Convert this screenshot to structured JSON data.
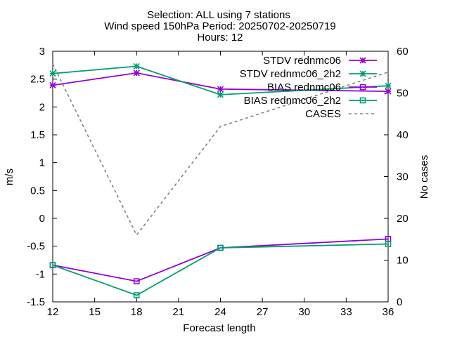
{
  "chart_data": {
    "type": "line",
    "title_lines": [
      "Selection: ALL using     7 stations",
      "Wind speed 150hPa   Period: 20250702-20250719",
      "Hours: 12"
    ],
    "xlabel": "Forecast length",
    "ylabel": "m/s",
    "y2label": "No cases",
    "xlim": [
      12,
      36
    ],
    "ylim": [
      -1.5,
      3
    ],
    "y2lim": [
      0,
      60
    ],
    "x_ticks": [
      12,
      15,
      18,
      21,
      24,
      27,
      30,
      33,
      36
    ],
    "y_ticks": [
      -1.5,
      -1,
      -0.5,
      0,
      0.5,
      1,
      1.5,
      2,
      2.5,
      3
    ],
    "y_tick_labels": [
      "-1.5",
      "-1",
      "-0.5",
      "0",
      "0.5",
      "1",
      "1.5",
      "2",
      "2.5",
      "3"
    ],
    "y2_ticks": [
      0,
      10,
      20,
      30,
      40,
      50,
      60
    ],
    "grid": false,
    "legend_position": "top-right",
    "series": [
      {
        "name": "STDV rednmc06",
        "axis": "y",
        "color": "#9400d3",
        "marker": "star",
        "dash": false,
        "x": [
          12,
          18,
          24,
          36
        ],
        "values": [
          2.39,
          2.61,
          2.32,
          2.28
        ]
      },
      {
        "name": "STDV rednmc06_2h2",
        "axis": "y",
        "color": "#009e73",
        "marker": "star",
        "dash": false,
        "x": [
          12,
          18,
          24,
          36
        ],
        "values": [
          2.6,
          2.73,
          2.22,
          2.38
        ]
      },
      {
        "name": "BIAS rednmc06",
        "axis": "y",
        "color": "#9400d3",
        "marker": "square",
        "dash": false,
        "x": [
          12,
          18,
          24,
          36
        ],
        "values": [
          -0.84,
          -1.13,
          -0.53,
          -0.37
        ]
      },
      {
        "name": "BIAS rednmc06_2h2",
        "axis": "y",
        "color": "#009e73",
        "marker": "square",
        "dash": false,
        "x": [
          12,
          18,
          24,
          36
        ],
        "values": [
          -0.84,
          -1.38,
          -0.53,
          -0.46
        ]
      },
      {
        "name": "CASES",
        "axis": "y2",
        "color": "#808080",
        "marker": "none",
        "dash": true,
        "x": [
          12,
          18,
          24,
          36
        ],
        "values": [
          57,
          16,
          42,
          55
        ]
      }
    ]
  }
}
